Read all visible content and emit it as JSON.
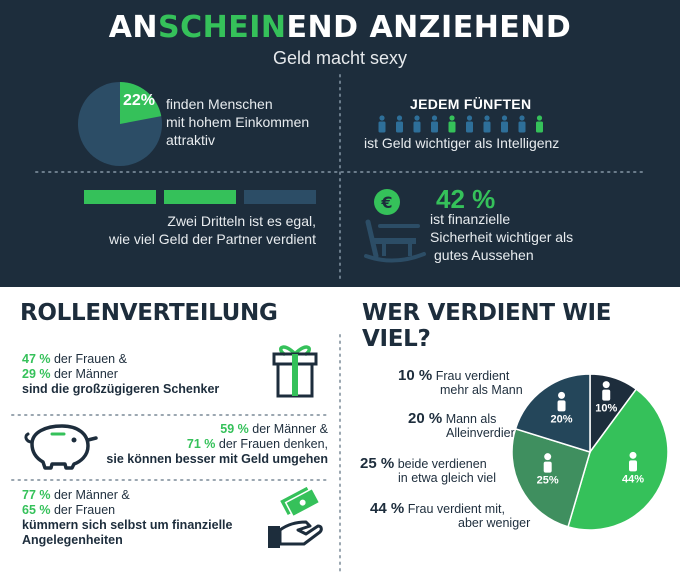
{
  "header": {
    "title_part1": "AN",
    "title_part2": "SCHEIN",
    "title_part3": "END ANZIEHEND",
    "subtitle": "Geld macht sexy"
  },
  "stat_income": {
    "percent": "22%",
    "text_line1": "finden Menschen",
    "text_line2": "mit hohem Einkommen",
    "text_line3": "attraktiv",
    "pie_value": 0.22
  },
  "stat_fifth": {
    "heading": "JEDEM FÜNFTEN",
    "text": "ist Geld wichtiger als Intelligenz",
    "figures_total": 10,
    "figures_highlighted": [
      4,
      9
    ]
  },
  "stat_thirds": {
    "text_line1": "Zwei Dritteln ist es egal,",
    "text_line2": "wie viel Geld der Partner verdient",
    "bars": [
      "green",
      "green",
      "blue"
    ]
  },
  "stat_security": {
    "percent": "42 %",
    "text_line1": "ist finanzielle",
    "text_line2": "Sicherheit wichtiger als",
    "text_line3": "gutes Aussehen",
    "coin_symbol": "€"
  },
  "rollen": {
    "heading": "ROLLENVERTEILUNG",
    "item1": {
      "pct1": "47 %",
      "text1": " der Frauen &",
      "pct2": "29 %",
      "text2": " der Männer",
      "bold": "sind die großzügigeren Schenker"
    },
    "item2": {
      "pct1": "59 %",
      "text1": " der Männer &",
      "pct2": "71 %",
      "text2": " der Frauen denken,",
      "bold": "sie können besser mit Geld umgehen"
    },
    "item3": {
      "pct1": "77 %",
      "text1": " der Männer &",
      "pct2": "65 %",
      "text2": " der Frauen",
      "bold_line1": "kümmern sich selbst um finanzielle",
      "bold_line2": "Angelegenheiten"
    }
  },
  "verdienst": {
    "heading": "WER VERDIENT WIE VIEL?",
    "legend": [
      {
        "pct": "10 %",
        "line1": "Frau verdient",
        "line2": "mehr als Mann"
      },
      {
        "pct": "20 %",
        "line1": "Mann als",
        "line2": "Alleinverdiener"
      },
      {
        "pct": "25 %",
        "line1": "beide verdienen",
        "line2": "in etwa gleich viel"
      },
      {
        "pct": "44 %",
        "line1": "Frau verdient mit,",
        "line2": "aber weniger"
      }
    ]
  },
  "chart_data": {
    "type": "pie",
    "categories": [
      "Frau verdient mehr als Mann",
      "Mann als Alleinverdiener",
      "beide verdienen in etwa gleich viel",
      "Frau verdient mit, aber weniger"
    ],
    "values": [
      10,
      20,
      25,
      44
    ],
    "labels": [
      "10%",
      "20%",
      "25%",
      "44%"
    ],
    "colors": [
      "#1d2d3c",
      "#24465a",
      "#3f8f5f",
      "#35c15a"
    ]
  },
  "colors": {
    "navy": "#1d2d3c",
    "green": "#35c15a",
    "slate": "#2c4d66"
  }
}
